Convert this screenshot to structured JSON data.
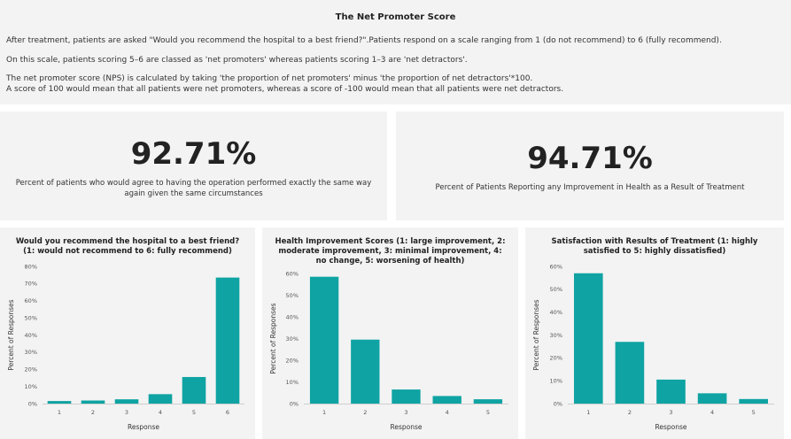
{
  "info": {
    "title": "The Net Promoter Score",
    "p1": "After treatment, patients are asked \"Would you recommend the hospital to a best friend?\".Patients respond on a scale ranging from 1 (do not recommend) to 6 (fully recommend).",
    "p2": "On this scale, patients scoring 5–6 are classed as 'net promoters' whereas patients scoring 1–3 are 'net detractors'.",
    "p3": "The net promoter score (NPS) is calculated by taking 'the proportion of net promoters' minus 'the proportion of net detractors'*100.",
    "p4": "A score of 100 would mean that all patients were net promoters, whereas a score of -100 would mean that all patients were net detractors."
  },
  "kpis": [
    {
      "value": "92.71%",
      "label": "Percent of patients who would agree to having the operation performed exactly the same way again given the same circumstances"
    },
    {
      "value": "94.71%",
      "label": "Percent of Patients Reporting any Improvement in Health as a Result of Treatment"
    }
  ],
  "colors": {
    "bar": "#0fa3a3",
    "panel": "#f3f3f3",
    "axis": "#cfcfcf"
  },
  "chart_data": [
    {
      "type": "bar",
      "title": "Would you recommend the hospital to a best friend? (1: would not recommend to 6: fully recommend)",
      "xlabel": "Response",
      "ylabel": "Percent of Responses",
      "categories": [
        "1",
        "2",
        "3",
        "4",
        "5",
        "6"
      ],
      "values": [
        1.5,
        1.8,
        2.5,
        5.5,
        15.5,
        73.5
      ],
      "ylim": [
        0,
        80
      ],
      "yticks": [
        "0%",
        "10%",
        "20%",
        "30%",
        "40%",
        "50%",
        "60%",
        "70%",
        "80%"
      ]
    },
    {
      "type": "bar",
      "title": "Health Improvement Scores (1: large improvement, 2: moderate improvement, 3: minimal improvement, 4: no change, 5: worsening of health)",
      "xlabel": "Response",
      "ylabel": "Percent of Responses",
      "categories": [
        "1",
        "2",
        "3",
        "4",
        "5"
      ],
      "values": [
        58.5,
        29.5,
        6.5,
        3.5,
        2.0
      ],
      "ylim": [
        0,
        60
      ],
      "yticks": [
        "0%",
        "10%",
        "20%",
        "30%",
        "40%",
        "50%",
        "60%"
      ]
    },
    {
      "type": "bar",
      "title": "Satisfaction with Results of Treatment (1: highly satisfied to 5: highly dissatisfied)",
      "xlabel": "Response",
      "ylabel": "Percent of Responses",
      "categories": [
        "1",
        "2",
        "3",
        "4",
        "5"
      ],
      "values": [
        57.0,
        27.0,
        10.5,
        4.5,
        2.0
      ],
      "ylim": [
        0,
        60
      ],
      "yticks": [
        "0%",
        "10%",
        "20%",
        "30%",
        "40%",
        "50%",
        "60%"
      ]
    }
  ]
}
